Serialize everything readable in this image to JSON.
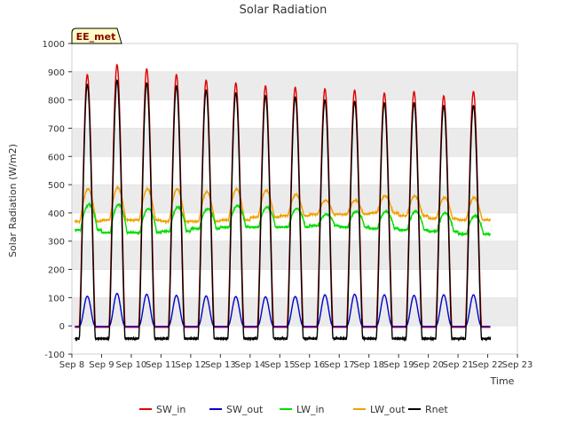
{
  "chart_data": {
    "type": "line",
    "title": "Solar Radiation",
    "xlabel": "Time",
    "ylabel": "Solar Radiation (W/m2)",
    "site_label": "EE_met",
    "ylim": [
      -100,
      1000
    ],
    "yticks": [
      -100,
      0,
      100,
      200,
      300,
      400,
      500,
      600,
      700,
      800,
      900,
      1000
    ],
    "xlim_days": [
      8,
      23
    ],
    "x_tick_labels": [
      "Sep 8",
      "Sep 9",
      "Sep 10",
      "Sep 11",
      "Sep 12",
      "Sep 13",
      "Sep 14",
      "Sep 15",
      "Sep 16",
      "Sep 17",
      "Sep 18",
      "Sep 19",
      "Sep 20",
      "Sep 21",
      "Sep 22",
      "Sep 23"
    ],
    "grid": "horizontal bands",
    "legend_position": "bottom",
    "days": [
      "Sep 8",
      "Sep 9",
      "Sep 10",
      "Sep 11",
      "Sep 12",
      "Sep 13",
      "Sep 14",
      "Sep 15",
      "Sep 16",
      "Sep 17",
      "Sep 18",
      "Sep 19",
      "Sep 20",
      "Sep 21"
    ],
    "series": [
      {
        "name": "SW_in",
        "color": "#e00000",
        "daily_peak": [
          890,
          925,
          910,
          890,
          870,
          860,
          850,
          845,
          840,
          835,
          825,
          830,
          815,
          830
        ],
        "night": -5
      },
      {
        "name": "SW_out",
        "color": "#0000cc",
        "daily_peak": [
          105,
          115,
          112,
          108,
          106,
          104,
          103,
          104,
          110,
          112,
          110,
          108,
          110,
          110
        ],
        "night": -2
      },
      {
        "name": "LW_in",
        "color": "#00dd00",
        "daily_peak": [
          430,
          430,
          415,
          420,
          415,
          425,
          420,
          415,
          395,
          405,
          405,
          405,
          400,
          390
        ],
        "daily_min": [
          340,
          330,
          330,
          335,
          345,
          350,
          350,
          350,
          355,
          350,
          345,
          340,
          335,
          325
        ]
      },
      {
        "name": "LW_out",
        "color": "#f0a000",
        "daily_peak": [
          485,
          490,
          485,
          485,
          475,
          485,
          480,
          465,
          445,
          445,
          460,
          460,
          455,
          455
        ],
        "daily_min": [
          370,
          375,
          375,
          370,
          370,
          375,
          385,
          390,
          395,
          395,
          400,
          390,
          380,
          375
        ]
      },
      {
        "name": "Rnet",
        "color": "#000000",
        "daily_peak": [
          855,
          870,
          860,
          850,
          835,
          825,
          815,
          810,
          800,
          795,
          790,
          790,
          780,
          780
        ],
        "night": -45
      }
    ]
  }
}
